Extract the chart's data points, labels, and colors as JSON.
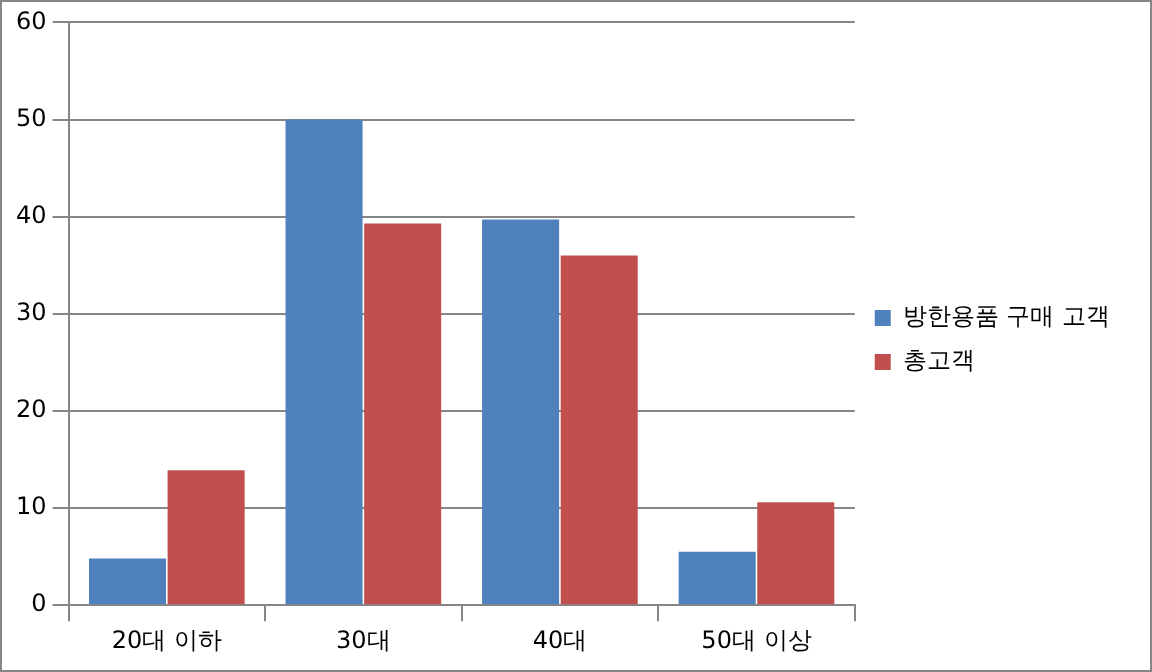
{
  "chart_data": {
    "type": "bar",
    "categories": [
      "20대 이하",
      "30대",
      "40대",
      "50대 이상"
    ],
    "series": [
      {
        "name": "방한용품 구매 고객",
        "color": "#4f81bd",
        "values": [
          4.8,
          50,
          39.7,
          5.5
        ]
      },
      {
        "name": "총고객",
        "color": "#c0504d",
        "values": [
          13.9,
          39.3,
          36,
          10.6
        ]
      }
    ],
    "ylim": [
      0,
      60
    ],
    "yticks": [
      0,
      10,
      20,
      30,
      40,
      50,
      60
    ],
    "grid": "y",
    "legend": "right"
  }
}
